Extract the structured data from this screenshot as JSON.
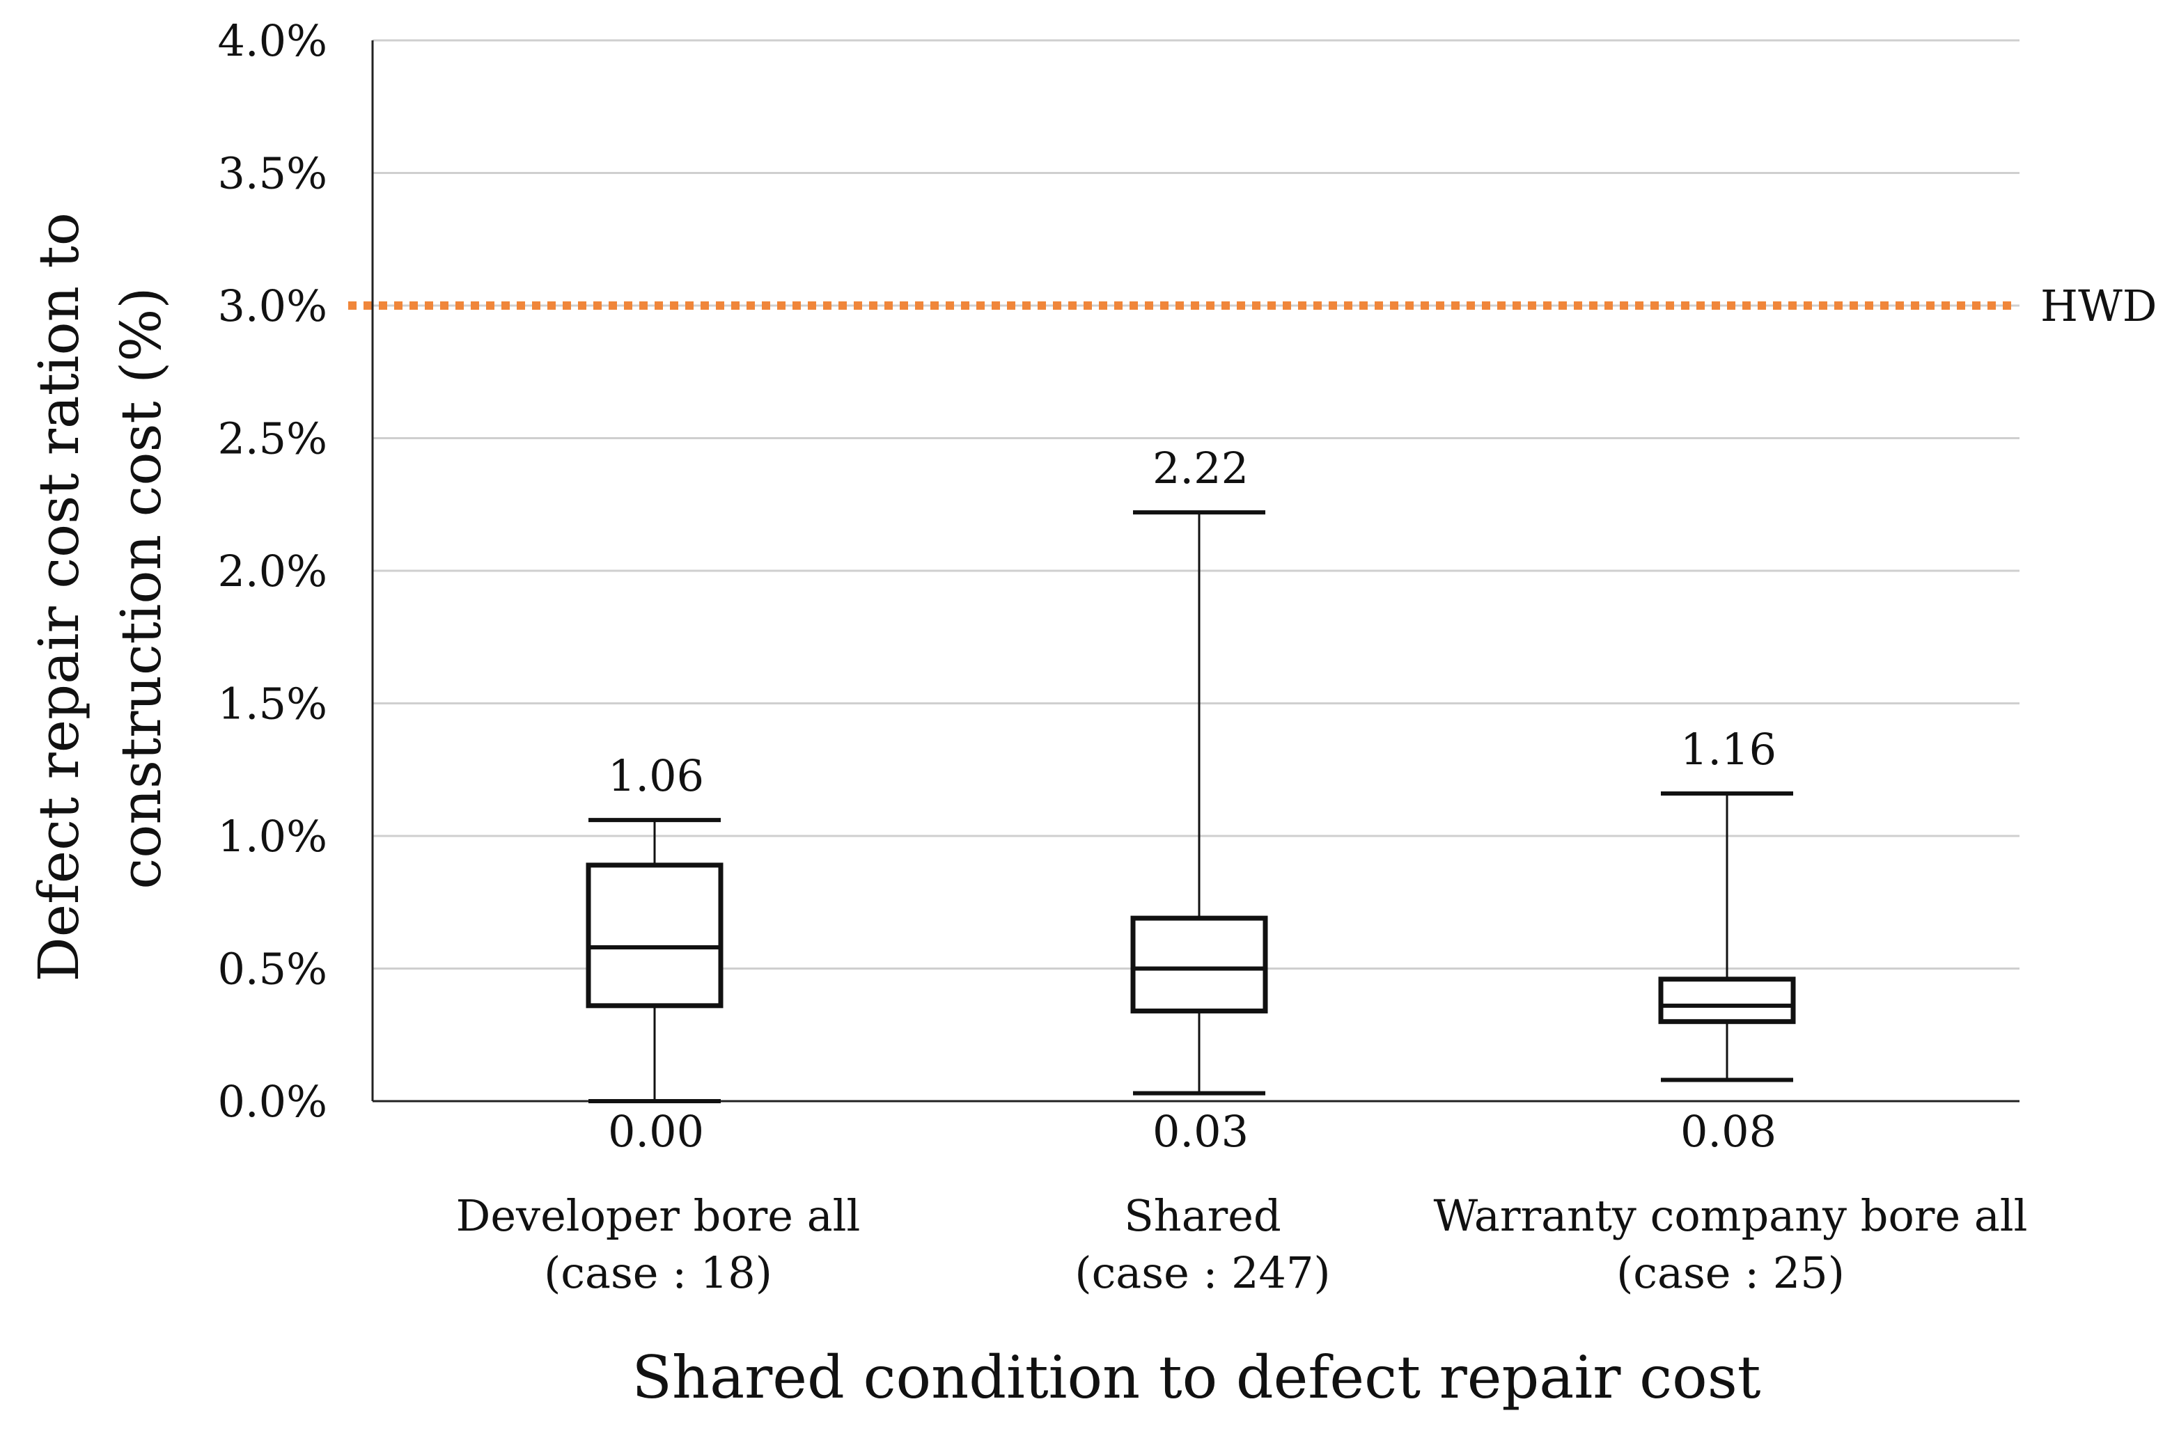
{
  "chart_data": {
    "type": "box",
    "title": "",
    "xlabel": "Shared condition to defect repair cost",
    "ylabel_lines": [
      "Defect repair cost ration to",
      "construction cost (%)"
    ],
    "ylim": [
      0,
      4.0
    ],
    "yticks": [
      {
        "value": 0.0,
        "label": "0.0%"
      },
      {
        "value": 0.5,
        "label": "0.5%"
      },
      {
        "value": 1.0,
        "label": "1.0%"
      },
      {
        "value": 1.5,
        "label": "1.5%"
      },
      {
        "value": 2.0,
        "label": "2.0%"
      },
      {
        "value": 2.5,
        "label": "2.5%"
      },
      {
        "value": 3.0,
        "label": "3.0%"
      },
      {
        "value": 3.5,
        "label": "3.5%"
      },
      {
        "value": 4.0,
        "label": "4.0%"
      }
    ],
    "grid": true,
    "reference_line": {
      "value": 3.0,
      "label": "HWD",
      "color": "#f0863a",
      "style": "dotted"
    },
    "boxes": [
      {
        "name": "Developer bore all",
        "case_label": "(case : 18)",
        "min": 0.0,
        "q1": 0.36,
        "median": 0.58,
        "q3": 0.89,
        "max": 1.06,
        "min_label": "0.00",
        "max_label": "1.06"
      },
      {
        "name": "Shared",
        "case_label": "(case : 247)",
        "min": 0.03,
        "q1": 0.34,
        "median": 0.5,
        "q3": 0.69,
        "max": 2.22,
        "min_label": "0.03",
        "max_label": "2.22"
      },
      {
        "name": "Warranty company bore all",
        "case_label": "(case : 25)",
        "min": 0.08,
        "q1": 0.3,
        "median": 0.36,
        "q3": 0.46,
        "max": 1.16,
        "min_label": "0.08",
        "max_label": "1.16"
      }
    ],
    "colors": {
      "box": "#111111",
      "grid": "#cfcfcf",
      "axis": "#222222"
    }
  }
}
